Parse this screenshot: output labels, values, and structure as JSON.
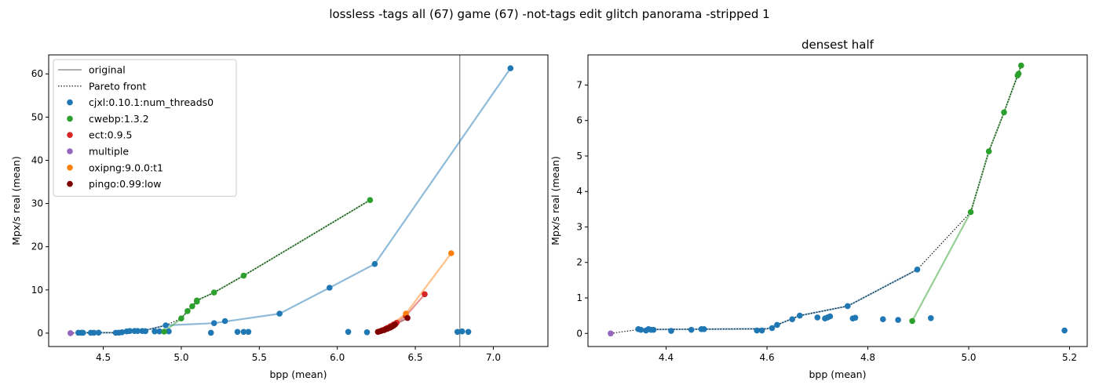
{
  "figure": {
    "suptitle": "lossless -tags all (67) game (67) -not-tags edit glitch panorama -stripped 1"
  },
  "chart_data": [
    {
      "type": "scatter",
      "title": "",
      "xlabel": "bpp (mean)",
      "ylabel": "Mpx/s real (mean)",
      "xlim": [
        4.15,
        7.35
      ],
      "ylim": [
        -3.1,
        64.4
      ],
      "xticks": [
        "4.5",
        "5.0",
        "5.5",
        "6.0",
        "6.5",
        "7.0"
      ],
      "yticks": [
        "0",
        "10",
        "20",
        "30",
        "40",
        "50",
        "60"
      ],
      "grid": false,
      "legend_position": "top-left",
      "reference_line": {
        "name": "original",
        "x": 6.785,
        "color": "#808080"
      },
      "pareto_front": {
        "name": "Pareto front",
        "points": [
          [
            4.29,
            0.0
          ],
          [
            4.37,
            0.1
          ],
          [
            4.6,
            0.12
          ],
          [
            4.75,
            0.5
          ],
          [
            4.9,
            1.8
          ],
          [
            4.9,
            1.8
          ],
          [
            5.0,
            3.4
          ],
          [
            5.04,
            5.1
          ],
          [
            5.07,
            6.2
          ],
          [
            5.1,
            7.3
          ],
          [
            5.1,
            7.55
          ],
          [
            5.21,
            9.4
          ],
          [
            5.4,
            13.3
          ],
          [
            6.21,
            30.8
          ]
        ]
      },
      "series": [
        {
          "name": "cjxl:0.10.1:num_threads0",
          "color": "#1f77b4",
          "line": [
            [
              4.37,
              0.1
            ],
            [
              4.6,
              0.12
            ],
            [
              4.75,
              0.5
            ],
            [
              4.9,
              1.8
            ],
            [
              5.21,
              2.3
            ],
            [
              5.63,
              4.5
            ],
            [
              5.95,
              10.5
            ],
            [
              6.24,
              16.0
            ],
            [
              7.11,
              61.3
            ]
          ],
          "points": [
            [
              4.34,
              0.1
            ],
            [
              4.36,
              0.1
            ],
            [
              4.37,
              0.1
            ],
            [
              4.42,
              0.1
            ],
            [
              4.44,
              0.1
            ],
            [
              4.47,
              0.12
            ],
            [
              4.58,
              0.1
            ],
            [
              4.6,
              0.12
            ],
            [
              4.62,
              0.2
            ],
            [
              4.65,
              0.4
            ],
            [
              4.67,
              0.5
            ],
            [
              4.7,
              0.5
            ],
            [
              4.72,
              0.5
            ],
            [
              4.75,
              0.5
            ],
            [
              4.77,
              0.45
            ],
            [
              4.83,
              0.4
            ],
            [
              4.86,
              0.4
            ],
            [
              4.92,
              0.4
            ],
            [
              4.9,
              1.8
            ],
            [
              5.19,
              0.1
            ],
            [
              5.21,
              2.3
            ],
            [
              5.28,
              2.8
            ],
            [
              5.36,
              0.3
            ],
            [
              5.4,
              0.3
            ],
            [
              5.43,
              0.3
            ],
            [
              5.63,
              4.5
            ],
            [
              5.95,
              10.5
            ],
            [
              6.07,
              0.3
            ],
            [
              6.19,
              0.2
            ],
            [
              6.24,
              16.0
            ],
            [
              6.77,
              0.3
            ],
            [
              6.8,
              0.4
            ],
            [
              6.84,
              0.3
            ],
            [
              7.11,
              61.3
            ]
          ]
        },
        {
          "name": "cwebp:1.3.2",
          "color": "#2ca02c",
          "line": [
            [
              4.89,
              0.35
            ],
            [
              5.0,
              3.4
            ],
            [
              5.04,
              5.1
            ],
            [
              5.07,
              6.2
            ],
            [
              5.1,
              7.3
            ],
            [
              5.1,
              7.55
            ],
            [
              5.21,
              9.4
            ],
            [
              5.4,
              13.3
            ],
            [
              6.21,
              30.8
            ]
          ],
          "points": [
            [
              4.89,
              0.35
            ],
            [
              5.0,
              3.4
            ],
            [
              5.04,
              5.1
            ],
            [
              5.07,
              6.2
            ],
            [
              5.1,
              7.3
            ],
            [
              5.1,
              7.55
            ],
            [
              5.21,
              9.4
            ],
            [
              5.4,
              13.3
            ],
            [
              6.21,
              30.8
            ]
          ]
        },
        {
          "name": "ect:0.9.5",
          "color": "#d62728",
          "line": [
            [
              6.27,
              0.4
            ],
            [
              6.32,
              1.2
            ],
            [
              6.36,
              2.0
            ],
            [
              6.44,
              4.0
            ],
            [
              6.56,
              9.0
            ]
          ],
          "points": [
            [
              6.27,
              0.4
            ],
            [
              6.29,
              0.7
            ],
            [
              6.31,
              1.0
            ],
            [
              6.32,
              1.2
            ],
            [
              6.34,
              1.6
            ],
            [
              6.36,
              2.0
            ],
            [
              6.38,
              2.4
            ],
            [
              6.44,
              4.0
            ],
            [
              6.56,
              9.0
            ]
          ]
        },
        {
          "name": "multiple",
          "color": "#9467bd",
          "line": [],
          "points": [
            [
              4.29,
              0.0
            ]
          ]
        },
        {
          "name": "oxipng:9.0.0:t1",
          "color": "#ff7f0e",
          "line": [
            [
              6.26,
              0.5
            ],
            [
              6.33,
              1.5
            ],
            [
              6.44,
              4.5
            ],
            [
              6.73,
              18.5
            ]
          ],
          "points": [
            [
              6.44,
              4.5
            ],
            [
              6.73,
              18.5
            ]
          ]
        },
        {
          "name": "pingo:0.99:low",
          "color": "#800000",
          "line": [
            [
              6.26,
              0.3
            ],
            [
              6.3,
              0.7
            ],
            [
              6.34,
              1.3
            ],
            [
              6.37,
              2.0
            ],
            [
              6.45,
              3.5
            ]
          ],
          "points": [
            [
              6.26,
              0.3
            ],
            [
              6.28,
              0.5
            ],
            [
              6.3,
              0.7
            ],
            [
              6.31,
              0.9
            ],
            [
              6.32,
              1.0
            ],
            [
              6.33,
              1.2
            ],
            [
              6.34,
              1.3
            ],
            [
              6.35,
              1.5
            ],
            [
              6.36,
              1.7
            ],
            [
              6.37,
              2.0
            ],
            [
              6.45,
              3.5
            ]
          ]
        }
      ]
    },
    {
      "type": "scatter",
      "title": "densest half",
      "xlabel": "bpp (mean)",
      "ylabel": "Mpx/s real (mean)",
      "xlim": [
        4.245,
        5.235
      ],
      "ylim": [
        -0.37,
        7.85
      ],
      "xticks": [
        "4.4",
        "4.6",
        "4.8",
        "5.0",
        "5.2"
      ],
      "yticks": [
        "0",
        "1",
        "2",
        "3",
        "4",
        "5",
        "6",
        "7"
      ],
      "grid": false,
      "pareto_front": {
        "name": "Pareto front",
        "points": [
          [
            4.29,
            0.0
          ],
          [
            4.345,
            0.11
          ],
          [
            4.6,
            0.13
          ],
          [
            4.62,
            0.24
          ],
          [
            4.665,
            0.5
          ],
          [
            4.76,
            0.77
          ],
          [
            4.898,
            1.8
          ],
          [
            5.004,
            3.42
          ],
          [
            5.04,
            5.13
          ],
          [
            5.07,
            6.23
          ],
          [
            5.097,
            7.27
          ],
          [
            5.104,
            7.55
          ]
        ]
      },
      "series": [
        {
          "name": "cjxl:0.10.1:num_threads0",
          "color": "#1f77b4",
          "line": [
            [
              4.345,
              0.11
            ],
            [
              4.6,
              0.13
            ],
            [
              4.62,
              0.24
            ],
            [
              4.665,
              0.5
            ],
            [
              4.76,
              0.77
            ],
            [
              4.898,
              1.8
            ]
          ],
          "points": [
            [
              4.345,
              0.12
            ],
            [
              4.35,
              0.1
            ],
            [
              4.36,
              0.08
            ],
            [
              4.365,
              0.12
            ],
            [
              4.37,
              0.1
            ],
            [
              4.375,
              0.1
            ],
            [
              4.41,
              0.07
            ],
            [
              4.45,
              0.1
            ],
            [
              4.47,
              0.12
            ],
            [
              4.475,
              0.12
            ],
            [
              4.58,
              0.08
            ],
            [
              4.59,
              0.08
            ],
            [
              4.61,
              0.15
            ],
            [
              4.62,
              0.24
            ],
            [
              4.65,
              0.4
            ],
            [
              4.665,
              0.5
            ],
            [
              4.7,
              0.45
            ],
            [
              4.715,
              0.42
            ],
            [
              4.72,
              0.45
            ],
            [
              4.725,
              0.48
            ],
            [
              4.76,
              0.77
            ],
            [
              4.77,
              0.42
            ],
            [
              4.775,
              0.44
            ],
            [
              4.83,
              0.4
            ],
            [
              4.86,
              0.38
            ],
            [
              4.898,
              1.8
            ],
            [
              4.925,
              0.43
            ],
            [
              5.19,
              0.08
            ]
          ]
        },
        {
          "name": "cwebp:1.3.2",
          "color": "#2ca02c",
          "line": [
            [
              4.888,
              0.35
            ],
            [
              5.004,
              3.42
            ],
            [
              5.04,
              5.13
            ],
            [
              5.07,
              6.23
            ],
            [
              5.097,
              7.27
            ],
            [
              5.104,
              7.55
            ]
          ],
          "points": [
            [
              4.888,
              0.35
            ],
            [
              5.004,
              3.42
            ],
            [
              5.04,
              5.13
            ],
            [
              5.07,
              6.23
            ],
            [
              5.097,
              7.27
            ],
            [
              5.099,
              7.32
            ],
            [
              5.104,
              7.55
            ]
          ]
        },
        {
          "name": "multiple",
          "color": "#9467bd",
          "line": [],
          "points": [
            [
              4.29,
              0.0
            ]
          ]
        }
      ]
    }
  ]
}
